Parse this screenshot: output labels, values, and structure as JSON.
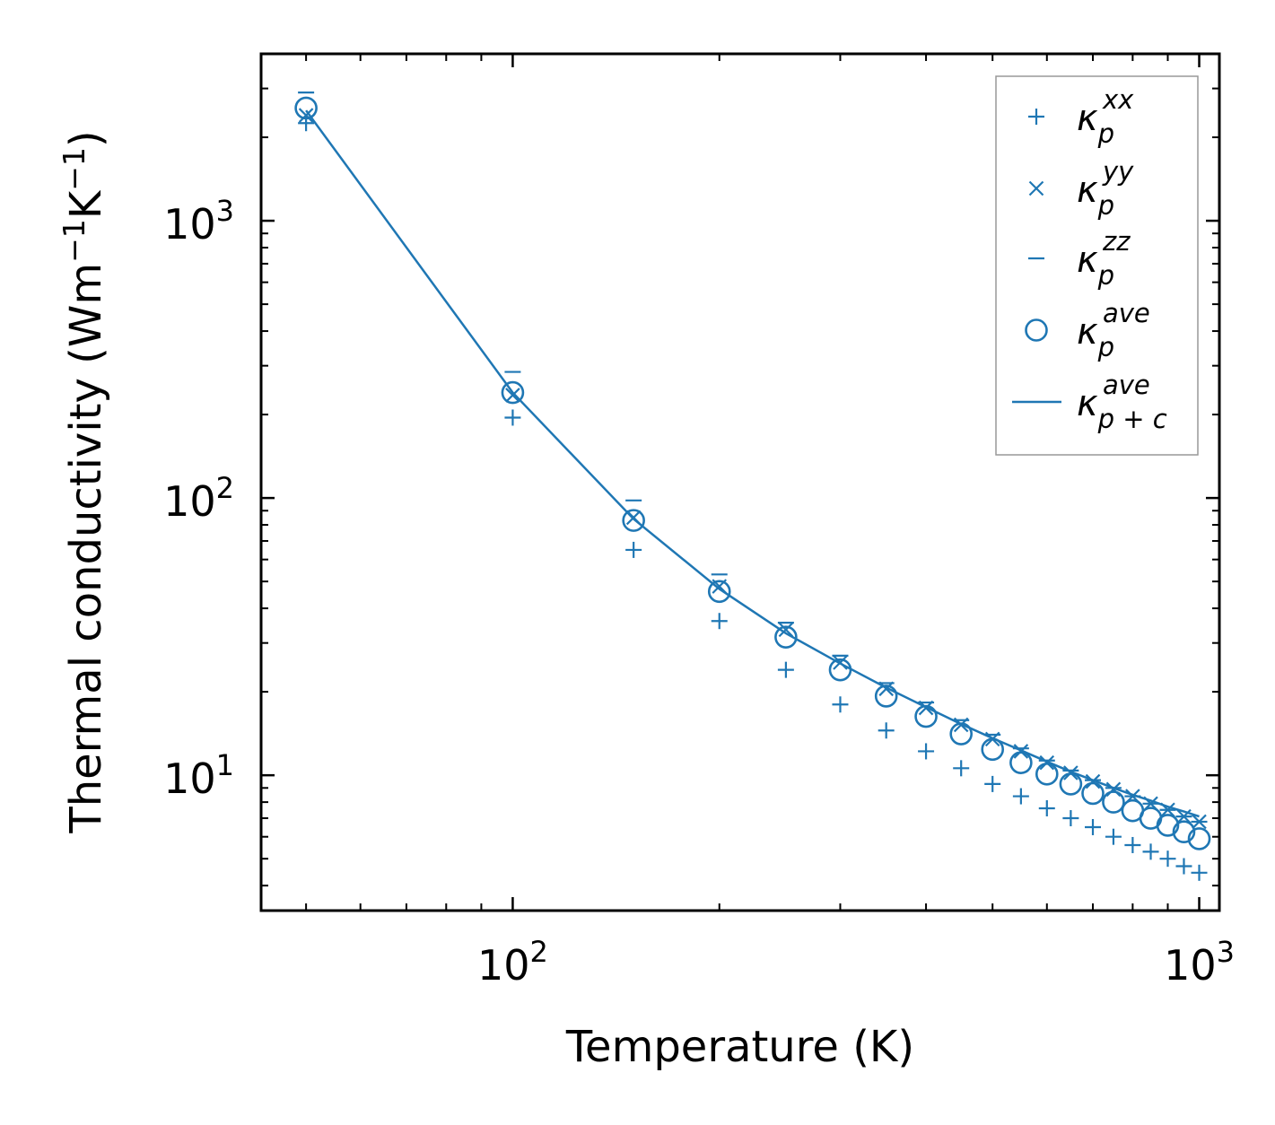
{
  "chart_data": {
    "type": "scatter",
    "xscale": "log",
    "yscale": "log",
    "xlabel": "Temperature (K)",
    "ylabel_main": "Thermal conductivity (Wm",
    "ylabel_sup1": "−1",
    "ylabel_mid": "K",
    "ylabel_sup2": "−1",
    "ylabel_end": ")",
    "xlim": [
      43,
      1070
    ],
    "ylim": [
      3.25,
      4000
    ],
    "x_ticks": [
      {
        "base": "10",
        "exp": "2",
        "value": 100
      },
      {
        "base": "10",
        "exp": "3",
        "value": 1000
      }
    ],
    "y_ticks": [
      {
        "base": "10",
        "exp": "1",
        "value": 10
      },
      {
        "base": "10",
        "exp": "2",
        "value": 100
      },
      {
        "base": "10",
        "exp": "3",
        "value": 1000
      }
    ],
    "color": "#1f77b4",
    "x": [
      50,
      100,
      150,
      200,
      250,
      300,
      350,
      400,
      450,
      500,
      550,
      600,
      650,
      700,
      750,
      800,
      850,
      900,
      950,
      1000
    ],
    "series": [
      {
        "name": "xx",
        "legend_sym": "κ",
        "legend_sub": "p",
        "legend_sup": "xx",
        "marker": "plus",
        "values": [
          2250,
          195,
          65,
          36,
          24,
          18,
          14.5,
          12.2,
          10.6,
          9.3,
          8.4,
          7.6,
          7.0,
          6.5,
          6.0,
          5.6,
          5.3,
          5.0,
          4.7,
          4.45
        ]
      },
      {
        "name": "yy",
        "legend_sym": "κ",
        "legend_sub": "p",
        "legend_sup": "yy",
        "marker": "x",
        "values": [
          2400,
          235,
          85,
          48,
          33.5,
          25.5,
          20.5,
          17.5,
          15.2,
          13.5,
          12.2,
          11.1,
          10.2,
          9.5,
          8.9,
          8.4,
          7.9,
          7.5,
          7.1,
          6.8
        ]
      },
      {
        "name": "zz",
        "legend_sym": "κ",
        "legend_sub": "p",
        "legend_sup": "zz",
        "marker": "hline",
        "values": [
          2900,
          285,
          98,
          53,
          35.5,
          27,
          21.5,
          18.3,
          15.8,
          14.0,
          12.5,
          11.3,
          10.4,
          9.6,
          9.0,
          8.4,
          7.9,
          7.5,
          7.1,
          6.8
        ]
      },
      {
        "name": "ave",
        "legend_sym": "κ",
        "legend_sub": "p",
        "legend_sup": "ave",
        "marker": "circle",
        "values": [
          2550,
          240,
          83,
          46,
          31.5,
          24,
          19.3,
          16.3,
          14.1,
          12.4,
          11.1,
          10.1,
          9.3,
          8.6,
          8.0,
          7.45,
          7.0,
          6.6,
          6.25,
          5.9
        ]
      },
      {
        "name": "p+c ave",
        "legend_sym": "κ",
        "legend_sub": "p + c",
        "legend_sup": "ave",
        "marker": "line",
        "values": [
          2500,
          240,
          84,
          47,
          32.5,
          25.3,
          20.7,
          17.6,
          15.3,
          13.6,
          12.3,
          11.2,
          10.3,
          9.6,
          9.0,
          8.5,
          8.1,
          7.7,
          7.4,
          7.1
        ]
      }
    ]
  }
}
